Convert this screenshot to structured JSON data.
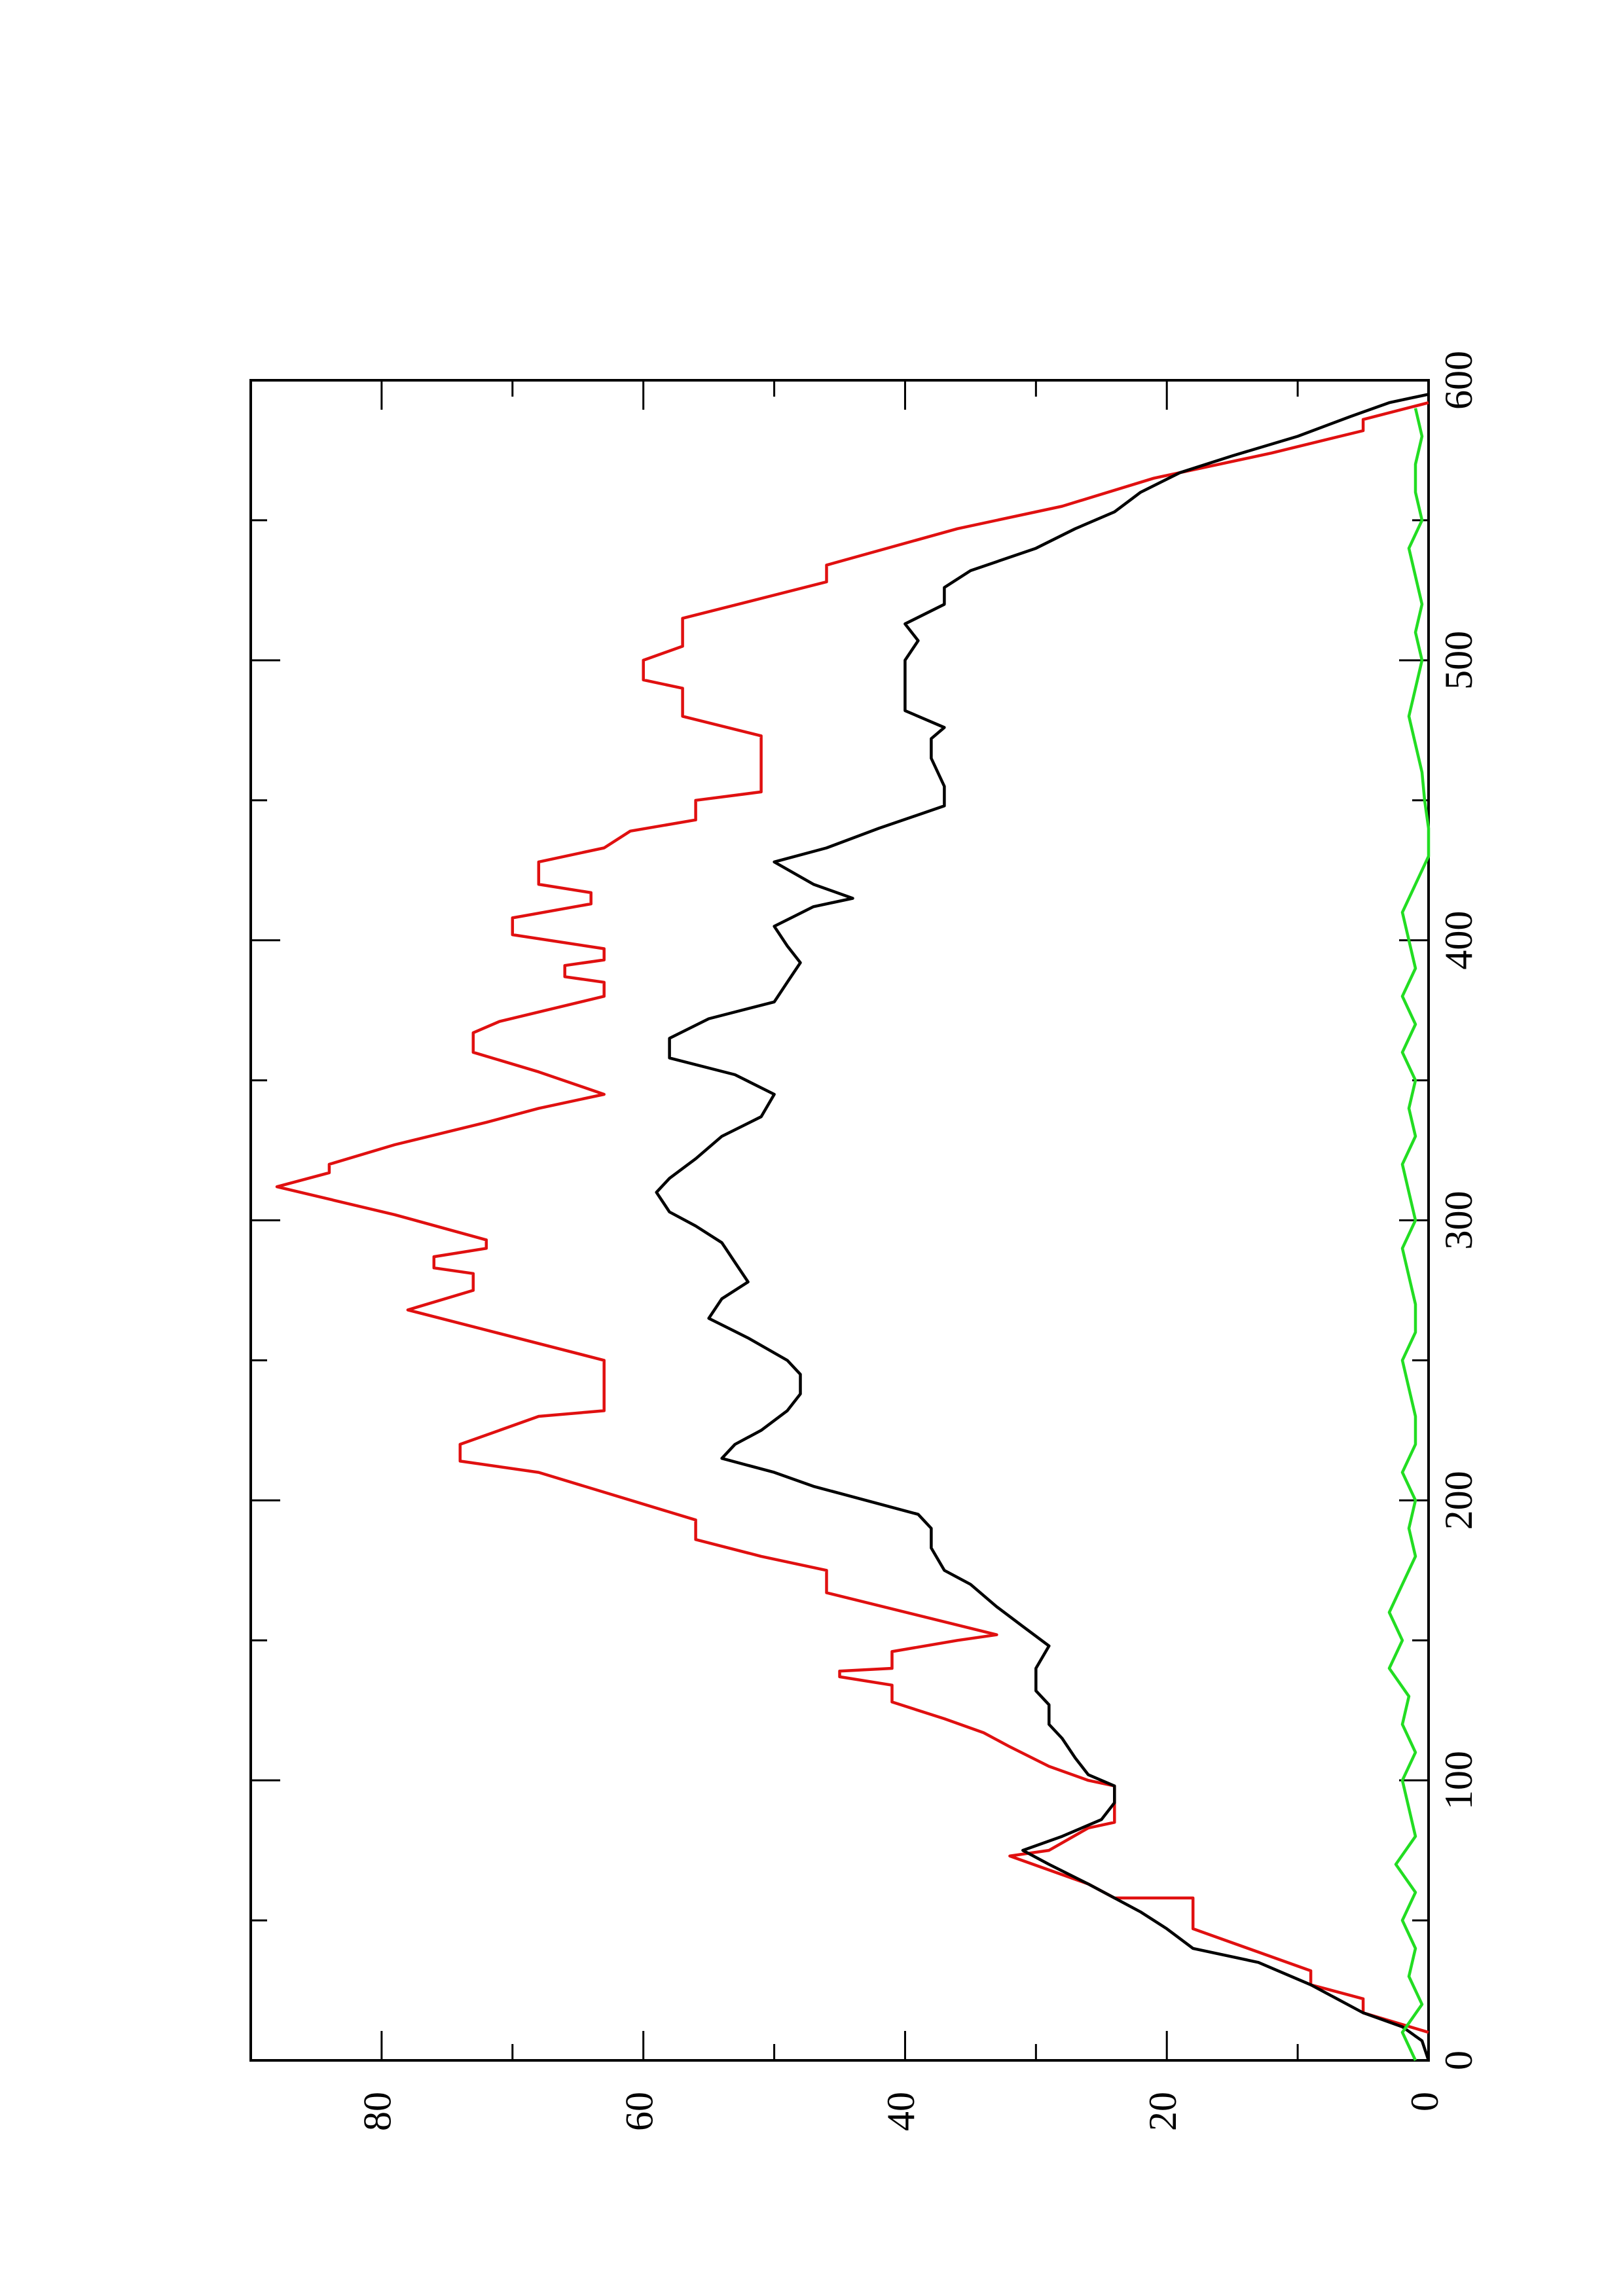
{
  "chart_data": {
    "type": "line",
    "xlim": [
      0,
      600
    ],
    "xticks": [
      0,
      100,
      200,
      300,
      400,
      500,
      600
    ],
    "xminorticks": [
      50,
      150,
      250,
      350,
      450,
      550
    ],
    "ylim": [
      0,
      90
    ],
    "yticks": [
      0,
      20,
      40,
      60,
      80
    ],
    "yminorticks": [
      10,
      30,
      50,
      70
    ],
    "series": [
      {
        "color": "#e01010",
        "x": [
          10,
          17,
          22,
          27,
          32,
          47,
          58,
          58,
          63,
          73,
          75,
          83,
          85,
          98,
          100,
          105,
          112,
          117,
          122,
          128,
          134,
          137,
          139,
          140,
          146,
          150,
          152,
          167,
          175,
          180,
          186,
          193,
          210,
          214,
          220,
          230,
          232,
          250,
          268,
          275,
          281,
          283,
          287,
          290,
          293,
          302,
          312,
          317,
          320,
          327,
          335,
          340,
          345,
          353,
          360,
          367,
          371,
          380,
          385,
          387,
          391,
          393,
          397,
          402,
          408,
          413,
          417,
          420,
          428,
          433,
          439,
          443,
          450,
          453,
          473,
          480,
          490,
          493,
          500,
          505,
          515,
          528,
          534,
          547,
          555,
          565,
          574,
          582,
          586,
          592
        ],
        "values": [
          0,
          5,
          5,
          9,
          9,
          18,
          18,
          24,
          26,
          32,
          29,
          26,
          24,
          24,
          26,
          29,
          32,
          34,
          37,
          41,
          41,
          45,
          45,
          41,
          41,
          36,
          33,
          46,
          46,
          51,
          56,
          56,
          68,
          74,
          74,
          68,
          63,
          63,
          78,
          73,
          73,
          76,
          76,
          72,
          72,
          79,
          88,
          84,
          84,
          79,
          72,
          68,
          63,
          68,
          73,
          73,
          71,
          63,
          63,
          66,
          66,
          63,
          63,
          70,
          70,
          64,
          64,
          68,
          68,
          63,
          61,
          56,
          56,
          51,
          51,
          57,
          57,
          60,
          60,
          57,
          57,
          46,
          46,
          36,
          28,
          21,
          12,
          5,
          5,
          0
        ]
      },
      {
        "color": "#000000",
        "x": [
          0,
          7,
          12,
          17,
          22,
          27,
          35,
          40,
          47,
          53,
          58,
          63,
          70,
          75,
          80,
          86,
          92,
          98,
          102,
          108,
          115,
          120,
          127,
          132,
          140,
          148,
          155,
          162,
          170,
          175,
          183,
          190,
          195,
          200,
          205,
          210,
          215,
          220,
          225,
          232,
          238,
          245,
          250,
          258,
          265,
          272,
          278,
          285,
          292,
          298,
          303,
          310,
          315,
          322,
          330,
          337,
          345,
          352,
          358,
          365,
          372,
          378,
          385,
          392,
          398,
          405,
          412,
          415,
          420,
          428,
          433,
          440,
          448,
          455,
          465,
          472,
          476,
          482,
          490,
          500,
          507,
          513,
          520,
          526,
          532,
          540,
          547,
          553,
          560,
          567,
          573,
          580,
          587,
          592,
          595
        ],
        "values": [
          0,
          0.5,
          2,
          5,
          7,
          9,
          13,
          18,
          20,
          22,
          24,
          26,
          29,
          31,
          28,
          25,
          24,
          24,
          26,
          27,
          28,
          29,
          29,
          30,
          30,
          29,
          31,
          33,
          35,
          37,
          38,
          38,
          39,
          43,
          47,
          50,
          54,
          53,
          51,
          49,
          48,
          48,
          49,
          52,
          55,
          54,
          52,
          53,
          54,
          56,
          58,
          59,
          58,
          56,
          54,
          51,
          50,
          53,
          58,
          58,
          55,
          50,
          49,
          48,
          49,
          50,
          47,
          44,
          47,
          50,
          46,
          42,
          37,
          37,
          38,
          38,
          37,
          40,
          40,
          40,
          39,
          40,
          37,
          37,
          35,
          30,
          27,
          24,
          22,
          19,
          15,
          10,
          6,
          3,
          0
        ]
      },
      {
        "color": "#22dd22",
        "x": [
          0,
          10,
          20,
          30,
          40,
          50,
          60,
          70,
          80,
          90,
          100,
          110,
          120,
          130,
          140,
          150,
          160,
          170,
          180,
          190,
          200,
          210,
          220,
          230,
          240,
          250,
          260,
          270,
          280,
          290,
          300,
          310,
          320,
          330,
          340,
          350,
          360,
          370,
          380,
          390,
          400,
          410,
          420,
          430,
          440,
          450,
          460,
          470,
          480,
          490,
          500,
          510,
          520,
          530,
          540,
          550,
          560,
          570,
          580,
          590
        ],
        "values": [
          1,
          2,
          0.5,
          1.5,
          1,
          2,
          1,
          2.5,
          1,
          1.5,
          2,
          1,
          2,
          1.5,
          3,
          2,
          3,
          2,
          1,
          1.5,
          1,
          2,
          1,
          1,
          1.5,
          2,
          1,
          1,
          1.5,
          2,
          1,
          1.5,
          2,
          1,
          1.5,
          1,
          2,
          1,
          2,
          1,
          1.5,
          2,
          1,
          0,
          0,
          0.3,
          0.5,
          1,
          1.5,
          1,
          0.5,
          1,
          0.5,
          1,
          1.5,
          0.5,
          1,
          1,
          0.5,
          1
        ]
      }
    ]
  }
}
